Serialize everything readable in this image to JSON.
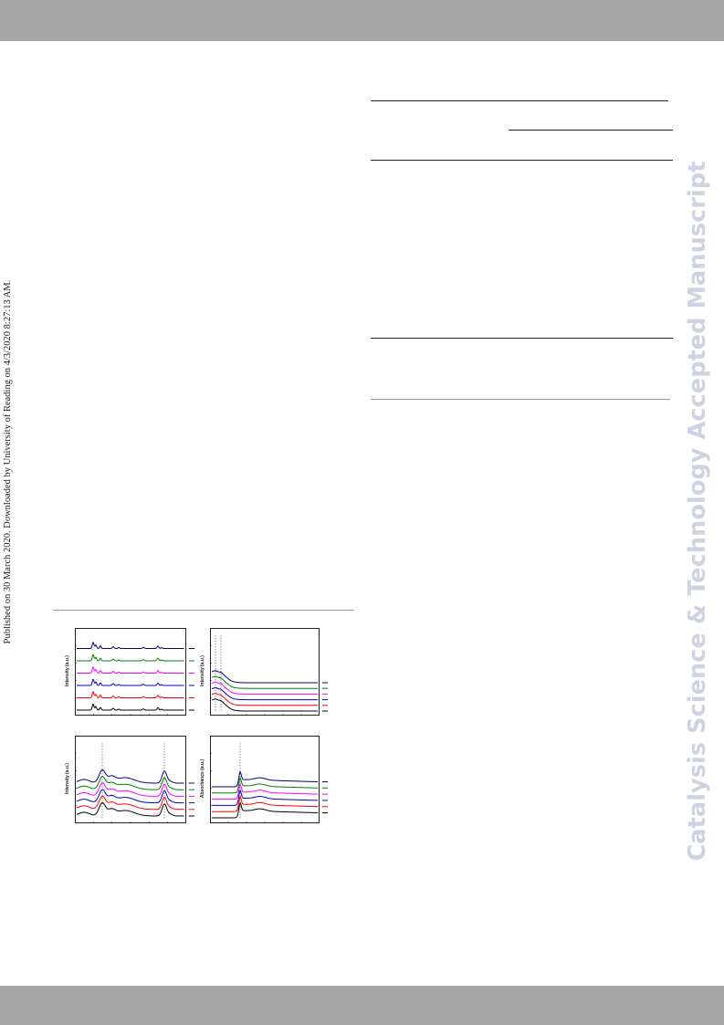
{
  "header": {
    "band_color": "#a6a6a6"
  },
  "footer": {
    "band_color": "#a6a6a6"
  },
  "side_note": {
    "text": "Published on 30 March 2020. Downloaded by University of Reading on 4/3/2020 8:27:13 AM."
  },
  "watermark": {
    "text": "Catalysis Science & Technology Accepted Manuscript",
    "color": "#cfd2e2"
  },
  "figure": {
    "series_colors": [
      "#000000",
      "#ff0000",
      "#0000cc",
      "#ff00ff",
      "#008000",
      "#000080"
    ],
    "panels": [
      {
        "id": "a",
        "ylabel": "Intensity (a.u.)"
      },
      {
        "id": "b",
        "ylabel": "Intensity (a.u.)"
      },
      {
        "id": "c",
        "ylabel": "Intensity (a.u.)"
      },
      {
        "id": "d",
        "ylabel": "Absorbance (a.u.)"
      }
    ]
  },
  "chart_data": [
    {
      "type": "line",
      "ylabel": "Intensity (a.u.)",
      "series_count": 6,
      "grid": false
    },
    {
      "type": "line",
      "ylabel": "Intensity (a.u.)",
      "series_count": 6,
      "grid": false
    },
    {
      "type": "line",
      "ylabel": "Intensity (a.u.)",
      "series_count": 6,
      "grid": false
    },
    {
      "type": "line",
      "ylabel": "Absorbance (a.u.)",
      "series_count": 6,
      "grid": false
    }
  ]
}
